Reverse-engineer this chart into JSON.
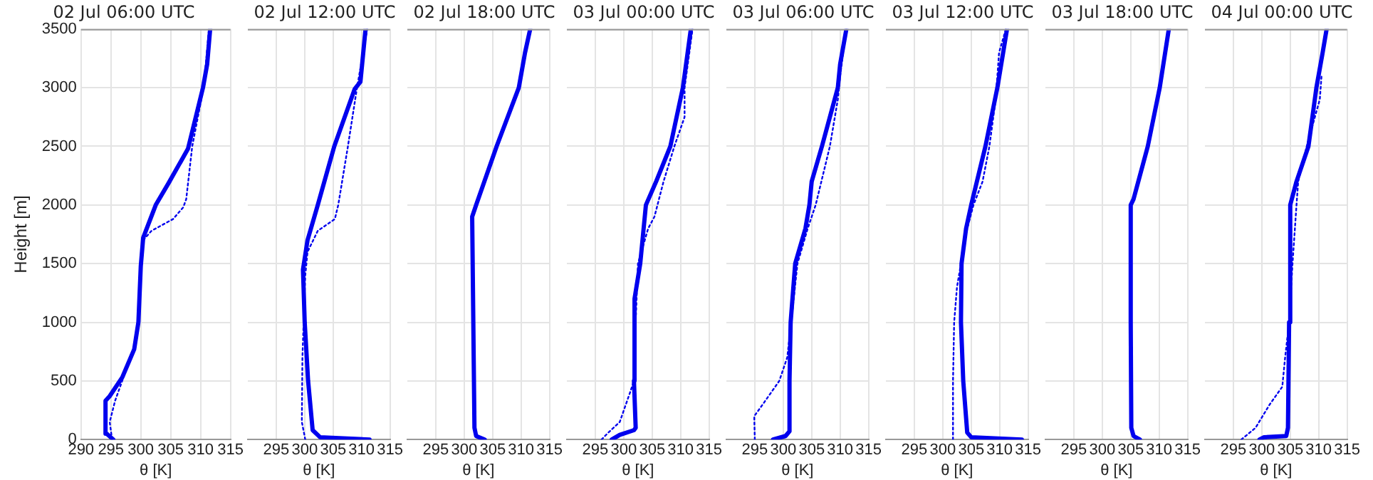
{
  "chart_data": [
    {
      "type": "line",
      "title": "02 Jul 06:00 UTC",
      "xlabel": "θ [K]",
      "ylabel": "Height [m]",
      "xlim": [
        290,
        315
      ],
      "xticks": [
        290,
        295,
        300,
        305,
        310,
        315
      ],
      "ylim": [
        0,
        3500
      ],
      "yticks": [
        0,
        500,
        1000,
        1500,
        2000,
        2500,
        3000,
        3500
      ],
      "grid": true,
      "marker": "none",
      "series": [
        {
          "color": "#0000ee",
          "line_style": "solid",
          "x": [
            295.4,
            294.3,
            294.1,
            294.8,
            296.9,
            298.9,
            299.6,
            300.0,
            300.4,
            302.5,
            304.8,
            307.9,
            310.4,
            311.1,
            311.6
          ],
          "values": [
            0,
            50,
            330,
            370,
            530,
            770,
            1000,
            1480,
            1720,
            2000,
            2200,
            2480,
            3000,
            3200,
            3500
          ]
        },
        {
          "color": "#0000ee",
          "line_style": "dotted",
          "x": [
            295.2,
            294.8,
            295.7,
            297.1,
            298.9,
            299.6,
            300.0,
            300.4,
            301.8,
            305.4,
            307.1,
            307.6,
            308.6,
            310.5,
            310.7,
            311.4
          ],
          "values": [
            0,
            150,
            330,
            530,
            770,
            1000,
            1480,
            1700,
            1780,
            1880,
            1980,
            2050,
            2500,
            3000,
            3100,
            3500
          ]
        }
      ]
    },
    {
      "type": "line",
      "title": "02 Jul 12:00 UTC",
      "xlabel": "θ [K]",
      "xlim": [
        290,
        315
      ],
      "xticks": [
        295,
        300,
        305,
        310,
        315
      ],
      "ylim": [
        0,
        3500
      ],
      "yticks": [
        0,
        500,
        1000,
        1500,
        2000,
        2500,
        3000,
        3500
      ],
      "grid": true,
      "tick_labels": "x",
      "marker": "none",
      "series": [
        {
          "color": "#0000ee",
          "line_style": "solid",
          "x": [
            311.4,
            302.7,
            301.4,
            300.6,
            300.0,
            299.7,
            300.5,
            302.3,
            305.2,
            308.8,
            309.8,
            310.1,
            310.7
          ],
          "values": [
            0,
            20,
            80,
            500,
            1000,
            1450,
            1700,
            2000,
            2500,
            2990,
            3050,
            3200,
            3500
          ]
        },
        {
          "color": "#0000ee",
          "line_style": "dotted",
          "x": [
            300.1,
            299.5,
            299.6,
            300.1,
            300.5,
            302.3,
            305.3,
            305.9,
            307.6,
            309.2,
            311.0
          ],
          "values": [
            0,
            150,
            700,
            1400,
            1600,
            1780,
            1880,
            2000,
            2500,
            3000,
            3500
          ]
        }
      ]
    },
    {
      "type": "line",
      "title": "02 Jul 18:00 UTC",
      "xlabel": "θ [K]",
      "xlim": [
        290,
        315
      ],
      "xticks": [
        295,
        300,
        305,
        310,
        315
      ],
      "ylim": [
        0,
        3500
      ],
      "yticks": [
        0,
        500,
        1000,
        1500,
        2000,
        2500,
        3000,
        3500
      ],
      "grid": true,
      "tick_labels": "x",
      "marker": "none",
      "series": [
        {
          "color": "#0000ee",
          "line_style": "solid",
          "x": [
            303.6,
            302.1,
            301.8,
            301.6,
            301.4,
            302.1,
            305.7,
            309.6,
            310.7,
            311.6
          ],
          "values": [
            0,
            30,
            100,
            1000,
            1900,
            2000,
            2500,
            3000,
            3300,
            3500
          ]
        }
      ]
    },
    {
      "type": "line",
      "title": "03 Jul 00:00 UTC",
      "xlabel": "θ [K]",
      "xlim": [
        290,
        315
      ],
      "xticks": [
        295,
        300,
        305,
        310,
        315
      ],
      "ylim": [
        0,
        3500
      ],
      "yticks": [
        0,
        500,
        1000,
        1500,
        2000,
        2500,
        3000,
        3500
      ],
      "grid": true,
      "tick_labels": "x",
      "marker": "none",
      "series": [
        {
          "color": "#0000ee",
          "line_style": "solid",
          "x": [
            297.9,
            299.3,
            301.8,
            302.1,
            301.8,
            301.9,
            302.9,
            303.9,
            305.7,
            308.2,
            310.4,
            311.8
          ],
          "values": [
            0,
            40,
            80,
            100,
            500,
            1200,
            1500,
            2000,
            2200,
            2500,
            3000,
            3500
          ]
        },
        {
          "color": "#0000ee",
          "line_style": "dotted",
          "x": [
            296.1,
            297.1,
            299.3,
            301.1,
            301.8,
            302.1,
            302.5,
            304.3,
            305.4,
            307.0,
            308.9,
            310.7,
            310.7,
            312.1
          ],
          "values": [
            0,
            50,
            150,
            400,
            500,
            1000,
            1500,
            1800,
            1900,
            2200,
            2500,
            2750,
            3000,
            3500
          ]
        }
      ]
    },
    {
      "type": "line",
      "title": "03 Jul 06:00 UTC",
      "xlabel": "θ [K]",
      "xlim": [
        290,
        315
      ],
      "xticks": [
        295,
        300,
        305,
        310,
        315
      ],
      "ylim": [
        0,
        3500
      ],
      "yticks": [
        0,
        500,
        1000,
        1500,
        2000,
        2500,
        3000,
        3500
      ],
      "grid": true,
      "tick_labels": "x",
      "marker": "none",
      "series": [
        {
          "color": "#0000ee",
          "line_style": "solid",
          "x": [
            298.2,
            300.4,
            301.1,
            301.1,
            301.3,
            302.1,
            303.9,
            304.6,
            305.0,
            306.8,
            309.6,
            310.0,
            311.1
          ],
          "values": [
            0,
            30,
            70,
            500,
            1000,
            1500,
            1800,
            2000,
            2200,
            2500,
            3000,
            3200,
            3500
          ]
        },
        {
          "color": "#0000ee",
          "line_style": "dotted",
          "x": [
            295.0,
            294.9,
            296.4,
            299.3,
            300.7,
            301.4,
            302.5,
            304.3,
            305.7,
            308.2,
            309.6,
            310.0,
            311.1
          ],
          "values": [
            0,
            200,
            300,
            500,
            700,
            1000,
            1500,
            1800,
            2000,
            2500,
            2900,
            3100,
            3500
          ]
        }
      ]
    },
    {
      "type": "line",
      "title": "03 Jul 12:00 UTC",
      "xlabel": "θ [K]",
      "xlim": [
        290,
        315
      ],
      "xticks": [
        295,
        300,
        305,
        310,
        315
      ],
      "ylim": [
        0,
        3500
      ],
      "yticks": [
        0,
        500,
        1000,
        1500,
        2000,
        2500,
        3000,
        3500
      ],
      "grid": true,
      "tick_labels": "x",
      "marker": "none",
      "series": [
        {
          "color": "#0000ee",
          "line_style": "solid",
          "x": [
            313.9,
            305.0,
            304.3,
            303.6,
            303.2,
            303.3,
            304.1,
            305.0,
            307.5,
            309.6,
            311.3
          ],
          "values": [
            0,
            20,
            60,
            500,
            1000,
            1500,
            1800,
            2000,
            2500,
            3000,
            3500
          ]
        },
        {
          "color": "#0000ee",
          "line_style": "dotted",
          "x": [
            301.8,
            301.8,
            302.0,
            302.5,
            303.2,
            304.3,
            305.4,
            307.0,
            308.2,
            309.3,
            309.6,
            309.9,
            311.1
          ],
          "values": [
            0,
            500,
            1000,
            1300,
            1500,
            1800,
            2000,
            2200,
            2500,
            2900,
            3100,
            3300,
            3500
          ]
        }
      ]
    },
    {
      "type": "line",
      "title": "03 Jul 18:00 UTC",
      "xlabel": "θ [K]",
      "xlim": [
        290,
        315
      ],
      "xticks": [
        295,
        300,
        305,
        310,
        315
      ],
      "ylim": [
        0,
        3500
      ],
      "yticks": [
        0,
        500,
        1000,
        1500,
        2000,
        2500,
        3000,
        3500
      ],
      "grid": true,
      "tick_labels": "x",
      "marker": "none",
      "series": [
        {
          "color": "#0000ee",
          "line_style": "solid",
          "x": [
            306.6,
            305.5,
            305.1,
            305.0,
            305.0,
            305.5,
            308.0,
            310.1,
            311.7
          ],
          "values": [
            0,
            30,
            100,
            1000,
            2000,
            2050,
            2500,
            3000,
            3500
          ]
        }
      ]
    },
    {
      "type": "line",
      "title": "04 Jul 00:00 UTC",
      "xlabel": "θ [K]",
      "xlim": [
        290,
        315
      ],
      "xticks": [
        295,
        300,
        305,
        310,
        315
      ],
      "ylim": [
        0,
        3500
      ],
      "yticks": [
        0,
        500,
        1000,
        1500,
        2000,
        2500,
        3000,
        3500
      ],
      "grid": true,
      "tick_labels": "x",
      "marker": "none",
      "series": [
        {
          "color": "#0000ee",
          "line_style": "solid",
          "x": [
            299.6,
            300.4,
            304.3,
            304.6,
            304.8,
            305.0,
            306.1,
            308.2,
            309.6,
            310.7,
            311.4
          ],
          "values": [
            0,
            20,
            30,
            100,
            1000,
            2000,
            2200,
            2500,
            3000,
            3300,
            3500
          ]
        },
        {
          "color": "#0000ee",
          "line_style": "dotted",
          "x": [
            296.4,
            298.9,
            301.4,
            303.6,
            304.1,
            304.8,
            305.4,
            306.1,
            306.4,
            307.9,
            310.2,
            310.5
          ],
          "values": [
            0,
            100,
            300,
            450,
            700,
            1000,
            1500,
            2000,
            2200,
            2500,
            2900,
            3100
          ]
        }
      ]
    }
  ]
}
